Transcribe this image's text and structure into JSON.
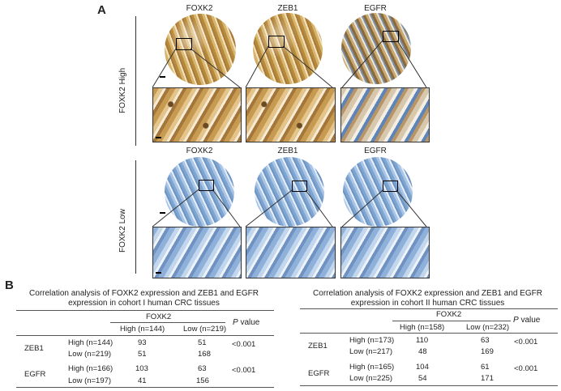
{
  "panel_a": {
    "letter": "A",
    "high_label": "FOXK2 High",
    "low_label": "FOXK2 Low",
    "columns": [
      "FOXK2",
      "ZEB1",
      "EGFR"
    ]
  },
  "panel_b": {
    "letter": "B",
    "tables": [
      {
        "title": "Correlation analysis of FOXK2 expression and ZEB1 and EGFR expression in cohort I human CRC tissues",
        "group": "FOXK2",
        "p_label": "P",
        "p_label_suffix": "value",
        "col_high": "High (n=144)",
        "col_low": "Low (n=219)",
        "rows": [
          {
            "gene": "ZEB1",
            "level": "High (n=144)",
            "high": "93",
            "low": "51",
            "p": "<0.001"
          },
          {
            "gene": "",
            "level": "Low (n=219)",
            "high": "51",
            "low": "168",
            "p": ""
          },
          {
            "gene": "EGFR",
            "level": "High (n=166)",
            "high": "103",
            "low": "63",
            "p": "<0.001"
          },
          {
            "gene": "",
            "level": "Low (n=197)",
            "high": "41",
            "low": "156",
            "p": ""
          }
        ]
      },
      {
        "title": "Correlation analysis of FOXK2 expression and ZEB1 and EGFR expression in cohort II human CRC tissues",
        "group": "FOXK2",
        "p_label": "P",
        "p_label_suffix": "value",
        "col_high": "High (n=158)",
        "col_low": "Low (n=232)",
        "rows": [
          {
            "gene": "ZEB1",
            "level": "High (n=173)",
            "high": "110",
            "low": "63",
            "p": "<0.001"
          },
          {
            "gene": "",
            "level": "Low (n=217)",
            "high": "48",
            "low": "169",
            "p": ""
          },
          {
            "gene": "EGFR",
            "level": "High (n=165)",
            "high": "104",
            "low": "61",
            "p": "<0.001"
          },
          {
            "gene": "",
            "level": "Low (n=225)",
            "high": "54",
            "low": "171",
            "p": ""
          }
        ]
      }
    ]
  }
}
